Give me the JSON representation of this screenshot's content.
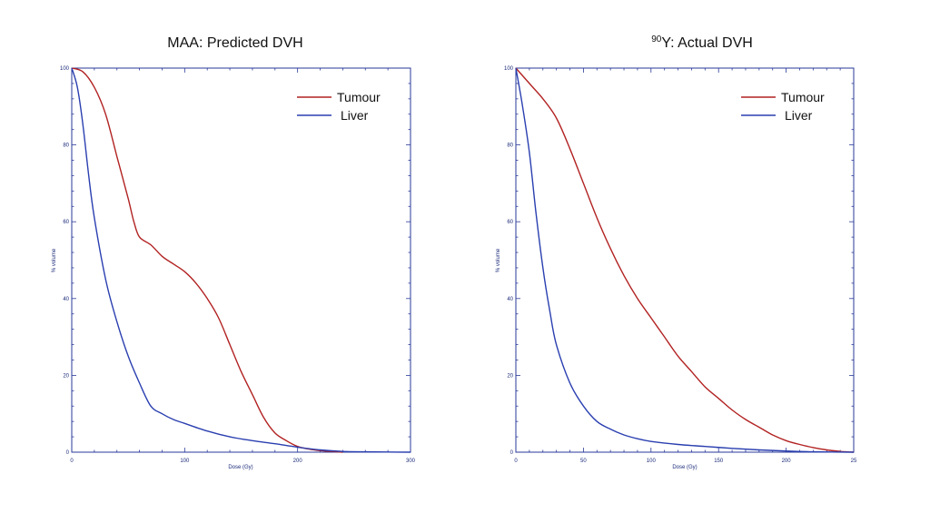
{
  "chart_data": [
    {
      "type": "line",
      "title": "MAA: Predicted DVH",
      "title_sup": "",
      "xlabel": "Dose (Gy)",
      "ylabel": "% volume",
      "xlim": [
        0,
        300
      ],
      "ylim": [
        0,
        100
      ],
      "xticks": [
        "0",
        "100",
        "200",
        "300"
      ],
      "yticks": [
        "0",
        "20",
        "40",
        "60",
        "80",
        "100"
      ],
      "grid": false,
      "legend": "top-right",
      "series": [
        {
          "name": "Tumour",
          "color": "#b22222",
          "x": [
            0,
            10,
            20,
            30,
            40,
            50,
            55,
            60,
            70,
            80,
            90,
            100,
            110,
            120,
            130,
            140,
            150,
            160,
            170,
            180,
            190,
            200,
            210,
            220,
            230,
            240
          ],
          "y": [
            100,
            99,
            95,
            88,
            77,
            66,
            60,
            56,
            54,
            51,
            49,
            47,
            44,
            40,
            35,
            28,
            21,
            15,
            9,
            5,
            3,
            1.5,
            0.8,
            0.4,
            0.2,
            0
          ]
        },
        {
          "name": "Liver",
          "color": "#2a3fb0",
          "x": [
            0,
            5,
            10,
            15,
            20,
            30,
            40,
            50,
            60,
            70,
            80,
            90,
            100,
            120,
            140,
            160,
            180,
            200,
            220,
            240,
            260,
            280,
            300
          ],
          "y": [
            100,
            95,
            85,
            72,
            61,
            45,
            34,
            25,
            18,
            12,
            10,
            8.5,
            7.5,
            5.5,
            4,
            3,
            2.2,
            1.3,
            0.6,
            0.2,
            0.1,
            0.05,
            0
          ]
        }
      ]
    },
    {
      "type": "line",
      "title": "Y: Actual DVH",
      "title_sup": "90",
      "xlabel": "Dose (Gy)",
      "ylabel": "% volume",
      "xlim": [
        0,
        250
      ],
      "ylim": [
        0,
        100
      ],
      "xticks": [
        "0",
        "50",
        "100",
        "150",
        "200",
        "25"
      ],
      "yticks": [
        "0",
        "20",
        "40",
        "60",
        "80",
        "100"
      ],
      "grid": false,
      "legend": "top-right",
      "series": [
        {
          "name": "Tumour",
          "color": "#b22222",
          "x": [
            0,
            10,
            20,
            30,
            40,
            50,
            60,
            70,
            80,
            90,
            100,
            110,
            120,
            130,
            140,
            150,
            160,
            170,
            180,
            190,
            200,
            210,
            220,
            230,
            240,
            250
          ],
          "y": [
            100,
            96,
            92,
            87,
            79,
            70,
            61,
            53,
            46,
            40,
            35,
            30,
            25,
            21,
            17,
            14,
            11,
            8.5,
            6.5,
            4.5,
            3,
            2,
            1.2,
            0.6,
            0.2,
            0
          ]
        },
        {
          "name": "Liver",
          "color": "#2a3fb0",
          "x": [
            0,
            5,
            10,
            15,
            20,
            25,
            30,
            40,
            50,
            60,
            70,
            80,
            90,
            100,
            120,
            140,
            160,
            180,
            200,
            220,
            250
          ],
          "y": [
            100,
            90,
            78,
            62,
            48,
            37,
            28,
            18,
            12,
            8,
            6,
            4.5,
            3.5,
            2.8,
            2,
            1.5,
            1,
            0.6,
            0.3,
            0.1,
            0
          ]
        }
      ]
    }
  ]
}
